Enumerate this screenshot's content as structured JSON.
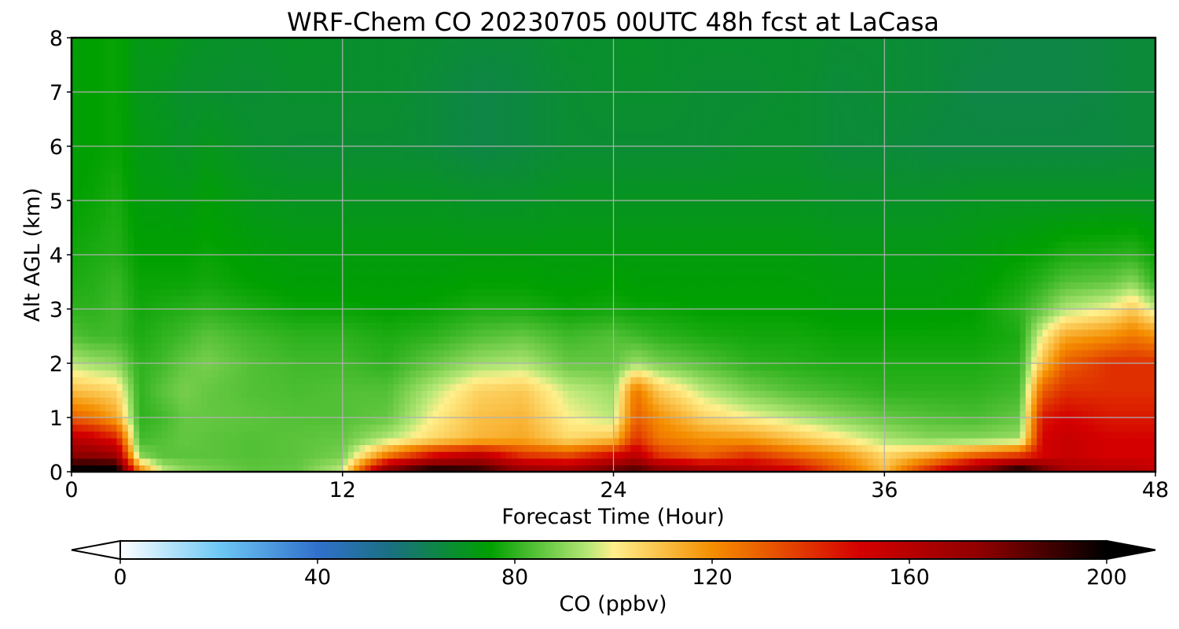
{
  "chart_data": {
    "type": "heatmap",
    "title": "WRF-Chem CO  20230705 00UTC 48h fcst at LaCasa",
    "xlabel": "Forecast Time (Hour)",
    "ylabel": "Alt AGL (km)",
    "xlim": [
      0,
      48
    ],
    "ylim": [
      0,
      8
    ],
    "xticks": [
      0,
      12,
      24,
      36,
      48
    ],
    "yticks": [
      0,
      1,
      2,
      3,
      4,
      5,
      6,
      7,
      8
    ],
    "grid": true,
    "x_hours": [
      0,
      1,
      2,
      3,
      4,
      5,
      6,
      8,
      10,
      12,
      14,
      16,
      18,
      20,
      22,
      24,
      25,
      26,
      28,
      30,
      32,
      34,
      36,
      38,
      40,
      42,
      43,
      44,
      46,
      47,
      48
    ],
    "y_km": [
      0.05,
      0.3,
      0.6,
      1.0,
      1.5,
      2.0,
      2.5,
      3.0,
      3.5,
      4.0,
      5.0,
      6.0,
      7.0,
      8.0
    ],
    "co_ppbv": [
      [
        200,
        200,
        200,
        120,
        95,
        90,
        88,
        85,
        86,
        95,
        175,
        195,
        190,
        170,
        165,
        180,
        185,
        175,
        165,
        160,
        150,
        130,
        110,
        140,
        170,
        195,
        180,
        165,
        160,
        160,
        155
      ],
      [
        175,
        175,
        170,
        90,
        85,
        85,
        85,
        84,
        85,
        88,
        125,
        150,
        160,
        140,
        135,
        150,
        160,
        140,
        130,
        140,
        130,
        120,
        105,
        115,
        130,
        140,
        150,
        155,
        150,
        150,
        150
      ],
      [
        160,
        155,
        145,
        82,
        84,
        86,
        85,
        84,
        85,
        86,
        95,
        105,
        112,
        115,
        105,
        110,
        140,
        125,
        120,
        118,
        110,
        102,
        94,
        90,
        90,
        92,
        150,
        155,
        150,
        150,
        150
      ],
      [
        130,
        125,
        115,
        80,
        82,
        86,
        86,
        85,
        84,
        84,
        86,
        100,
        110,
        112,
        100,
        95,
        130,
        120,
        106,
        100,
        95,
        90,
        86,
        84,
        83,
        86,
        145,
        150,
        145,
        145,
        145
      ],
      [
        110,
        108,
        105,
        80,
        85,
        88,
        86,
        84,
        83,
        84,
        84,
        95,
        106,
        108,
        96,
        92,
        125,
        108,
        95,
        88,
        84,
        82,
        80,
        80,
        80,
        82,
        130,
        140,
        140,
        140,
        140
      ],
      [
        95,
        92,
        90,
        80,
        82,
        86,
        88,
        84,
        82,
        82,
        80,
        86,
        92,
        94,
        86,
        86,
        92,
        88,
        84,
        80,
        79,
        78,
        78,
        78,
        78,
        80,
        110,
        130,
        140,
        140,
        140
      ],
      [
        84,
        82,
        82,
        78,
        80,
        82,
        85,
        82,
        80,
        80,
        78,
        80,
        84,
        86,
        82,
        84,
        82,
        80,
        78,
        77,
        77,
        76,
        76,
        76,
        76,
        78,
        100,
        115,
        120,
        125,
        120
      ],
      [
        80,
        80,
        82,
        77,
        78,
        79,
        80,
        78,
        76,
        76,
        75,
        76,
        78,
        78,
        76,
        77,
        76,
        76,
        75,
        75,
        75,
        74,
        74,
        74,
        75,
        80,
        86,
        94,
        100,
        108,
        96
      ],
      [
        78,
        79,
        81,
        76,
        76,
        76,
        77,
        75,
        74,
        74,
        74,
        74,
        75,
        75,
        74,
        75,
        74,
        74,
        74,
        74,
        74,
        73,
        73,
        73,
        74,
        77,
        80,
        84,
        86,
        90,
        80
      ],
      [
        77,
        78,
        79,
        75,
        75,
        75,
        76,
        74,
        73,
        73,
        73,
        73,
        73,
        73,
        73,
        73,
        73,
        73,
        73,
        73,
        73,
        72,
        72,
        72,
        73,
        75,
        76,
        78,
        79,
        80,
        76
      ],
      [
        75,
        76,
        78,
        73,
        73,
        72,
        74,
        71,
        70,
        70,
        70,
        70,
        69,
        69,
        70,
        70,
        70,
        70,
        70,
        70,
        70,
        69,
        69,
        69,
        70,
        70,
        70,
        70,
        70,
        70,
        70
      ],
      [
        74,
        75,
        76,
        72,
        71,
        69,
        71,
        68,
        67,
        67,
        67,
        66,
        64,
        65,
        67,
        67,
        67,
        67,
        67,
        68,
        68,
        66,
        66,
        65,
        65,
        65,
        65,
        65,
        65,
        66,
        66
      ],
      [
        74,
        75,
        76,
        71,
        70,
        68,
        68,
        67,
        68,
        68,
        68,
        66,
        64,
        65,
        67,
        68,
        68,
        68,
        67,
        67,
        68,
        66,
        67,
        66,
        64,
        64,
        64,
        64,
        65,
        66,
        66
      ],
      [
        74,
        75,
        76,
        71,
        72,
        70,
        69,
        68,
        69,
        68,
        68,
        67,
        66,
        66,
        68,
        68,
        69,
        68,
        68,
        68,
        68,
        67,
        67,
        66,
        65,
        64,
        64,
        64,
        65,
        66,
        66
      ]
    ],
    "colorbar": {
      "label": "CO  (ppbv)",
      "min": 0,
      "max": 200,
      "ticks": [
        0,
        40,
        80,
        120,
        160,
        200
      ],
      "extend": "both",
      "colors": [
        [
          0,
          "#ffffff"
        ],
        [
          20,
          "#6ec8f5"
        ],
        [
          40,
          "#3070cc"
        ],
        [
          55,
          "#1a7080"
        ],
        [
          75,
          "#00a000"
        ],
        [
          95,
          "#b8e878"
        ],
        [
          100,
          "#fff08c"
        ],
        [
          120,
          "#f58e00"
        ],
        [
          150,
          "#d40000"
        ],
        [
          175,
          "#8c0000"
        ],
        [
          200,
          "#000000"
        ]
      ]
    }
  }
}
